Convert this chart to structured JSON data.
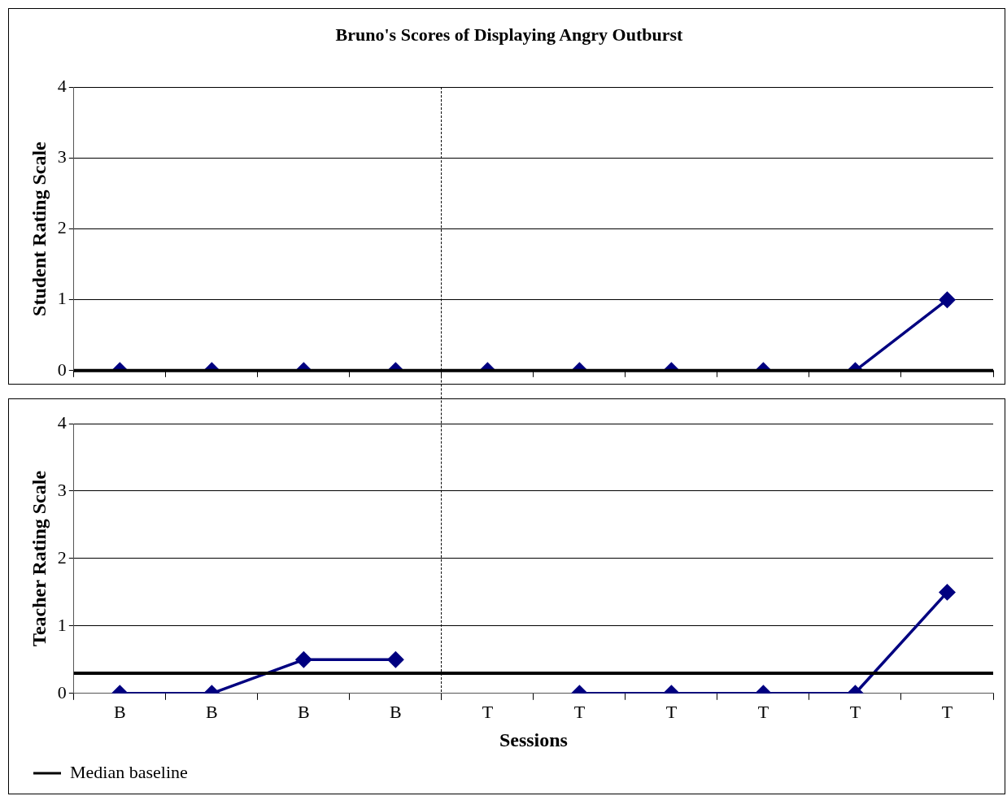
{
  "chart_data": [
    {
      "type": "line",
      "title": "Bruno's Scores of Displaying Angry Outburst",
      "ylabel": "Student Rating Scale",
      "categories": [
        null,
        null,
        null,
        null,
        null,
        null,
        null,
        null,
        null,
        null
      ],
      "ylim": [
        0,
        4
      ],
      "yticks": [
        0,
        1,
        2,
        3,
        4
      ],
      "grid": "y",
      "tick_labels": "y",
      "marker": "diamond",
      "ref_lines": [
        {
          "axis": "y",
          "value": 0,
          "color": "#000000"
        }
      ],
      "series": [
        {
          "color": "#000080",
          "values": [
            0,
            0,
            0,
            0,
            0,
            0,
            0,
            0,
            0,
            1
          ]
        }
      ]
    },
    {
      "type": "line",
      "xlabel": "Sessions",
      "ylabel": "Teacher Rating Scale",
      "categories": [
        "B",
        "B",
        "B",
        "B",
        "T",
        "T",
        "T",
        "T",
        "T",
        "T"
      ],
      "ylim": [
        0,
        4
      ],
      "yticks": [
        0,
        1,
        2,
        3,
        4
      ],
      "grid": "y",
      "legend": "bottom left",
      "marker": "diamond",
      "ref_lines": [
        {
          "axis": "y",
          "value": 0.3,
          "color": "#000000",
          "label": "Median baseline"
        }
      ],
      "series": [
        {
          "color": "#000080",
          "values": [
            0,
            0,
            0.5,
            0.5,
            null,
            0,
            0,
            0,
            0,
            1.5
          ]
        }
      ]
    }
  ]
}
